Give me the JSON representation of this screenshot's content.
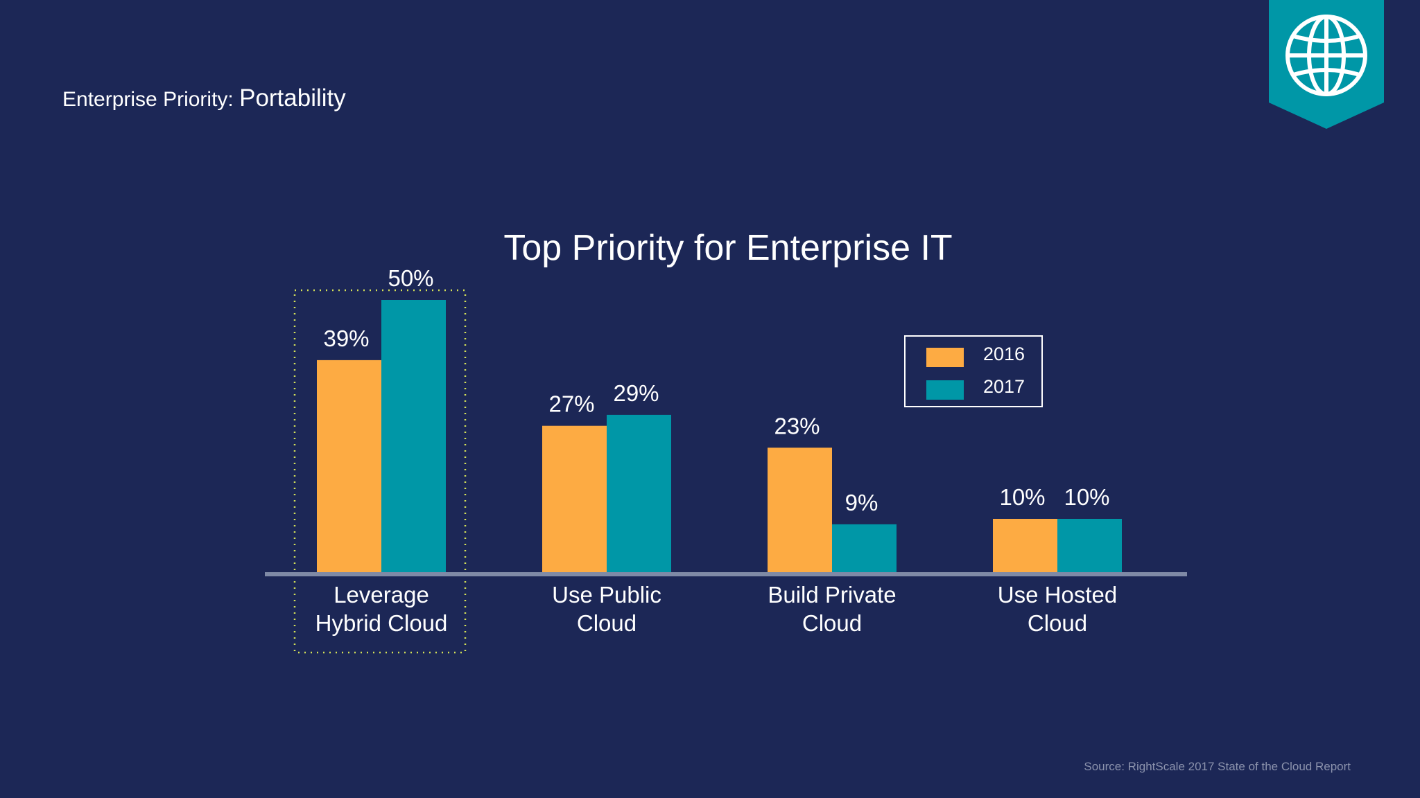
{
  "header": {
    "prefix": "Enterprise Priority:",
    "topic": "Portability"
  },
  "badge": {
    "icon": "globe-icon",
    "color": "#0097a7"
  },
  "source": "Source: RightScale 2017 State of the Cloud Report",
  "colors": {
    "s2016": "#fdab43",
    "s2017": "#0097a7",
    "axis": "#7f8aa6",
    "highlight": "#d4e157",
    "background": "#1c2756"
  },
  "chart_data": {
    "type": "bar",
    "title": "Top Priority for Enterprise IT",
    "xlabel": "",
    "ylabel": "",
    "ylim": [
      0,
      50
    ],
    "categories": [
      "Leverage Hybrid Cloud",
      "Use Public Cloud",
      "Build Private Cloud",
      "Use Hosted Cloud"
    ],
    "category_lines": [
      [
        "Leverage",
        "Hybrid Cloud"
      ],
      [
        "Use Public",
        "Cloud"
      ],
      [
        "Build Private",
        "Cloud"
      ],
      [
        "Use Hosted",
        "Cloud"
      ]
    ],
    "series": [
      {
        "name": "2016",
        "values": [
          39,
          27,
          23,
          10
        ],
        "labels": [
          "39%",
          "27%",
          "23%",
          "10%"
        ]
      },
      {
        "name": "2017",
        "values": [
          50,
          29,
          9,
          10
        ],
        "labels": [
          "50%",
          "29%",
          "9%",
          "10%"
        ]
      }
    ],
    "highlighted_category": "Leverage Hybrid Cloud",
    "legend_position": "top-right",
    "grid": false
  }
}
